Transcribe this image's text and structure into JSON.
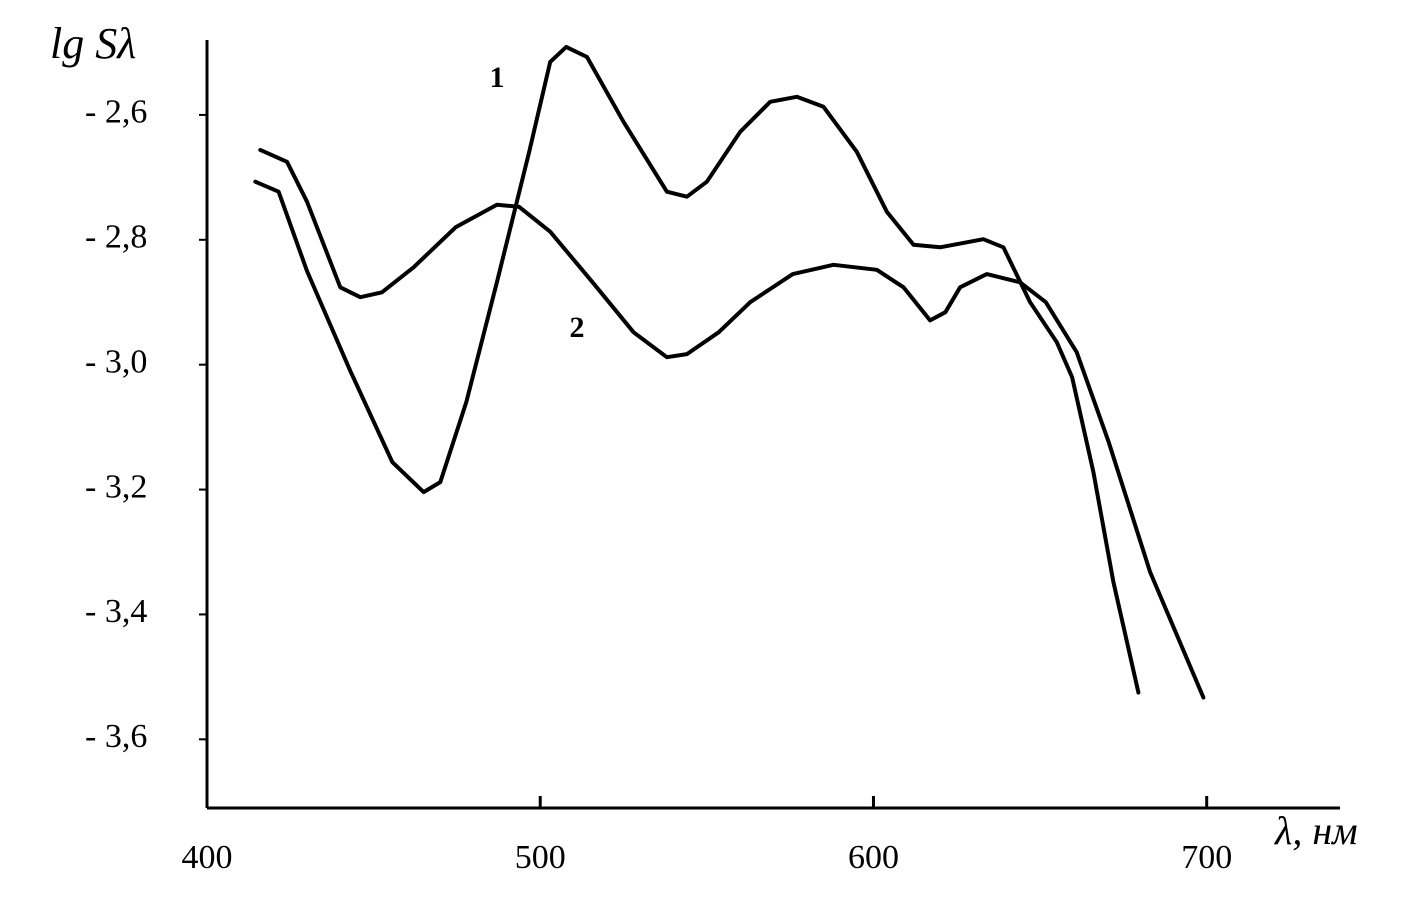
{
  "chart_data": {
    "type": "line",
    "ylabel": "lg Sλ",
    "xlabel": "λ, нм",
    "xlim": [
      400,
      740
    ],
    "ylim": [
      -3.71,
      -2.48
    ],
    "xticks": [
      400,
      500,
      600,
      700
    ],
    "yticks": [
      {
        "value": -2.6,
        "label": "- 2,6"
      },
      {
        "value": -2.8,
        "label": "- 2,8"
      },
      {
        "value": -3.0,
        "label": "- 3,0"
      },
      {
        "value": -3.2,
        "label": "- 3,2"
      },
      {
        "value": -3.4,
        "label": "- 3,4"
      },
      {
        "value": -3.6,
        "label": "- 3,6"
      }
    ],
    "grid": false,
    "series": [
      {
        "name": "1",
        "color": "#000000",
        "x": [
          414.5,
          421.5,
          430,
          443,
          455.6,
          465,
          470,
          477.8,
          487,
          496.7,
          503,
          507.8,
          514,
          525,
          538,
          544,
          550,
          560,
          569,
          577,
          585,
          595,
          604,
          612,
          620,
          633,
          639,
          647,
          655,
          659.6,
          666,
          672,
          679.5
        ],
        "values": [
          -2.707,
          -2.723,
          -2.85,
          -3.01,
          -3.156,
          -3.204,
          -3.188,
          -3.06,
          -2.868,
          -2.659,
          -2.515,
          -2.491,
          -2.507,
          -2.611,
          -2.723,
          -2.731,
          -2.707,
          -2.627,
          -2.579,
          -2.571,
          -2.587,
          -2.659,
          -2.755,
          -2.808,
          -2.812,
          -2.799,
          -2.812,
          -2.9,
          -2.964,
          -3.02,
          -3.172,
          -3.348,
          -3.525
        ]
      },
      {
        "name": "2",
        "color": "#000000",
        "x": [
          416,
          424,
          430,
          440,
          446,
          452.5,
          462,
          474.6,
          487,
          493.6,
          503,
          515.7,
          528,
          538,
          544,
          553.6,
          563,
          575.8,
          588,
          601,
          609,
          617,
          621.6,
          626,
          634,
          644,
          651.7,
          661,
          670.6,
          683,
          699
        ],
        "values": [
          -2.656,
          -2.675,
          -2.739,
          -2.876,
          -2.892,
          -2.884,
          -2.844,
          -2.78,
          -2.744,
          -2.747,
          -2.787,
          -2.868,
          -2.948,
          -2.988,
          -2.983,
          -2.948,
          -2.9,
          -2.855,
          -2.84,
          -2.848,
          -2.876,
          -2.929,
          -2.916,
          -2.876,
          -2.855,
          -2.868,
          -2.9,
          -2.98,
          -3.124,
          -3.332,
          -3.533
        ]
      }
    ]
  }
}
